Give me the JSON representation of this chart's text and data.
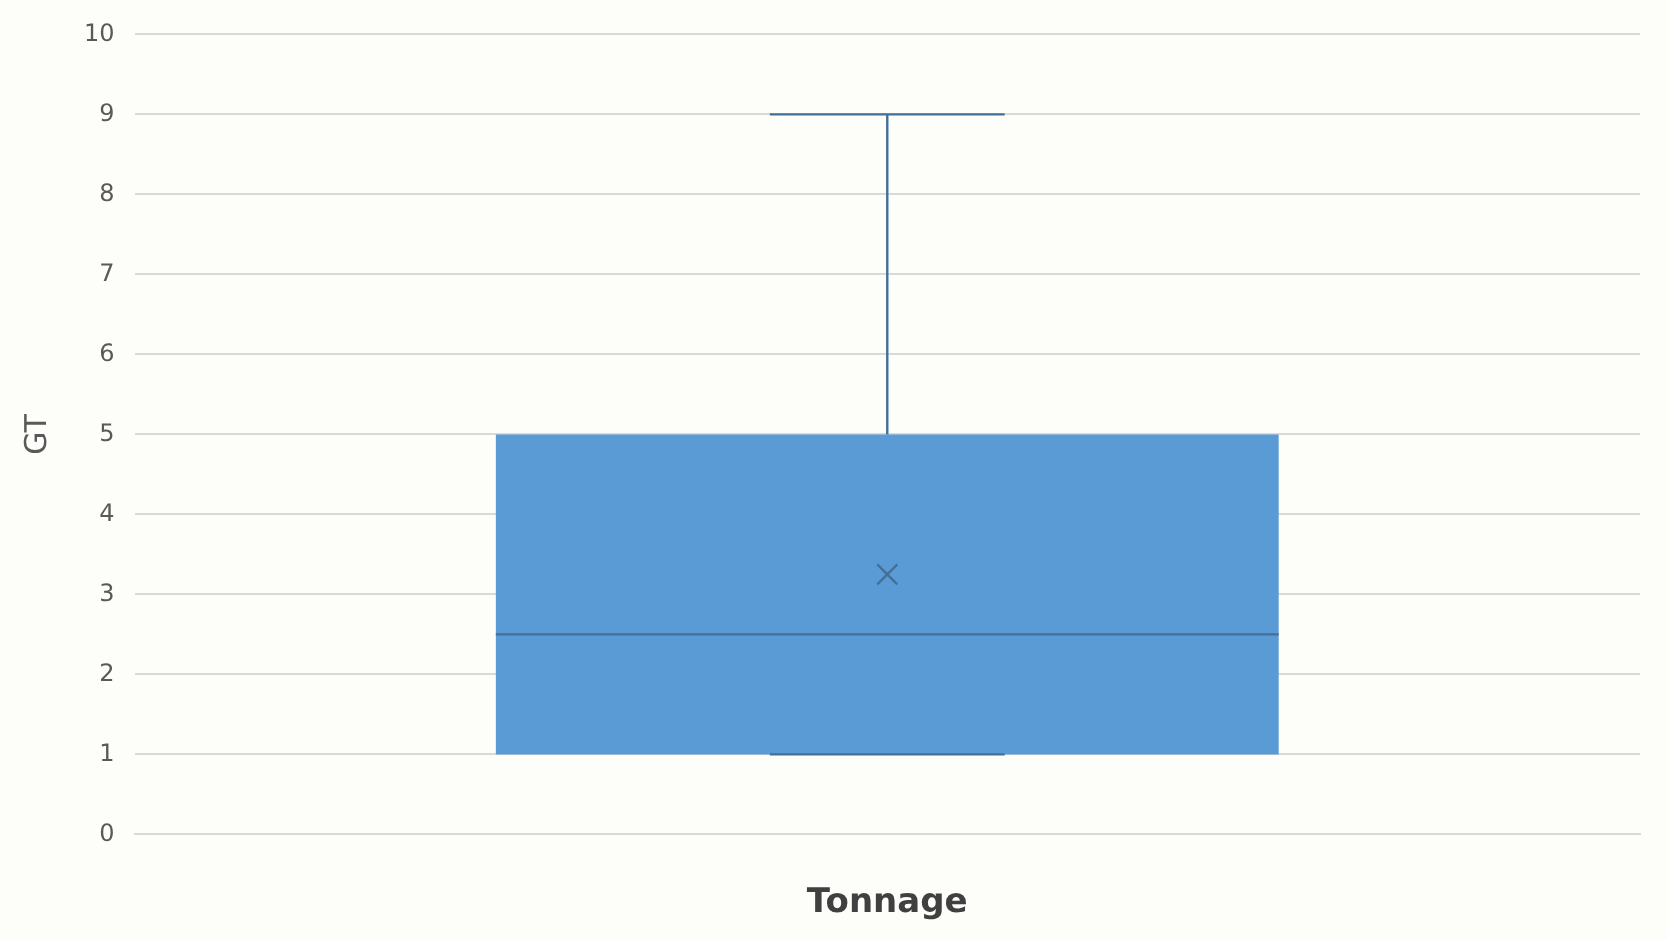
{
  "chart_data": {
    "type": "box",
    "ylabel": "GT",
    "xlabel": "Tonnage",
    "categories": [
      null
    ],
    "boxes": [
      {
        "low": 1,
        "q1": 1,
        "median": 2.5,
        "q3": 5,
        "high": 9,
        "mean": 3.25
      }
    ],
    "color": "#5b9bd5",
    "marker": "cross",
    "ylim": [
      0,
      10
    ],
    "yticks": [
      0,
      1,
      2,
      3,
      4,
      5,
      6,
      7,
      8,
      9,
      10
    ],
    "grid": "y",
    "legend": false
  }
}
